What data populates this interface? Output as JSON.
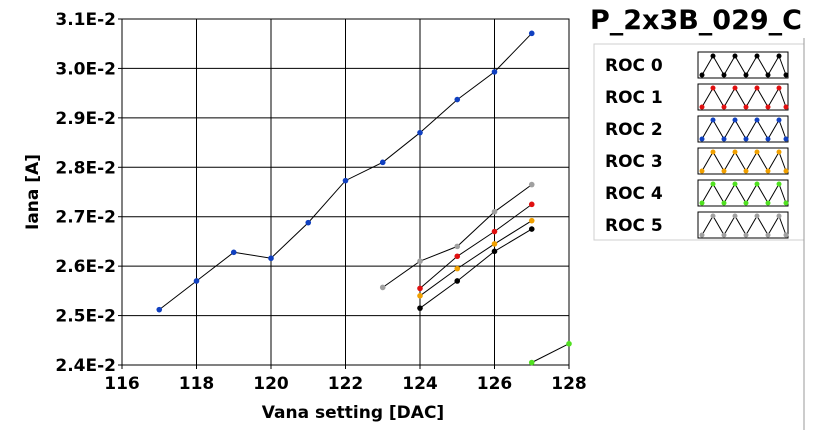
{
  "chart_data": {
    "type": "line",
    "title": "P_2x3B_029_C",
    "xlabel": "Vana setting [DAC]",
    "ylabel": "Iana [A]",
    "xlim": [
      116,
      128
    ],
    "ylim": [
      0.024,
      0.031
    ],
    "x_ticks": [
      116,
      118,
      120,
      122,
      124,
      126,
      128
    ],
    "x_tick_labels": [
      "116",
      "118",
      "120",
      "122",
      "124",
      "126",
      "128"
    ],
    "y_ticks": [
      0.024,
      0.025,
      0.026,
      0.027,
      0.028,
      0.029,
      0.03,
      0.031
    ],
    "y_tick_labels": [
      "2.4E-2",
      "2.5E-2",
      "2.6E-2",
      "2.7E-2",
      "2.8E-2",
      "2.9E-2",
      "3.0E-2",
      "3.1E-2"
    ],
    "grid": true,
    "legend_position": "right",
    "series": [
      {
        "name": "ROC 0",
        "color": "#000000",
        "x": [
          124,
          125,
          126,
          127
        ],
        "y": [
          0.02515,
          0.0257,
          0.0263,
          0.02675
        ]
      },
      {
        "name": "ROC 1",
        "color": "#e01010",
        "x": [
          124,
          125,
          126,
          127
        ],
        "y": [
          0.02555,
          0.0262,
          0.0267,
          0.02725
        ]
      },
      {
        "name": "ROC 2",
        "color": "#1040c0",
        "x": [
          117,
          118,
          119,
          120,
          121,
          122,
          123,
          124,
          125,
          126,
          127
        ],
        "y": [
          0.02512,
          0.0257,
          0.02628,
          0.02616,
          0.02688,
          0.02773,
          0.0281,
          0.0287,
          0.02937,
          0.02993,
          0.03071
        ]
      },
      {
        "name": "ROC 3",
        "color": "#f0a000",
        "x": [
          124,
          125,
          126,
          127
        ],
        "y": [
          0.0254,
          0.02595,
          0.02645,
          0.02692
        ]
      },
      {
        "name": "ROC 4",
        "color": "#50e020",
        "x": [
          127,
          128
        ],
        "y": [
          0.02405,
          0.02443
        ]
      },
      {
        "name": "ROC 5",
        "color": "#a0a0a0",
        "x": [
          123,
          124,
          125,
          126,
          127
        ],
        "y": [
          0.02557,
          0.0261,
          0.0264,
          0.0271,
          0.02765
        ]
      }
    ]
  }
}
